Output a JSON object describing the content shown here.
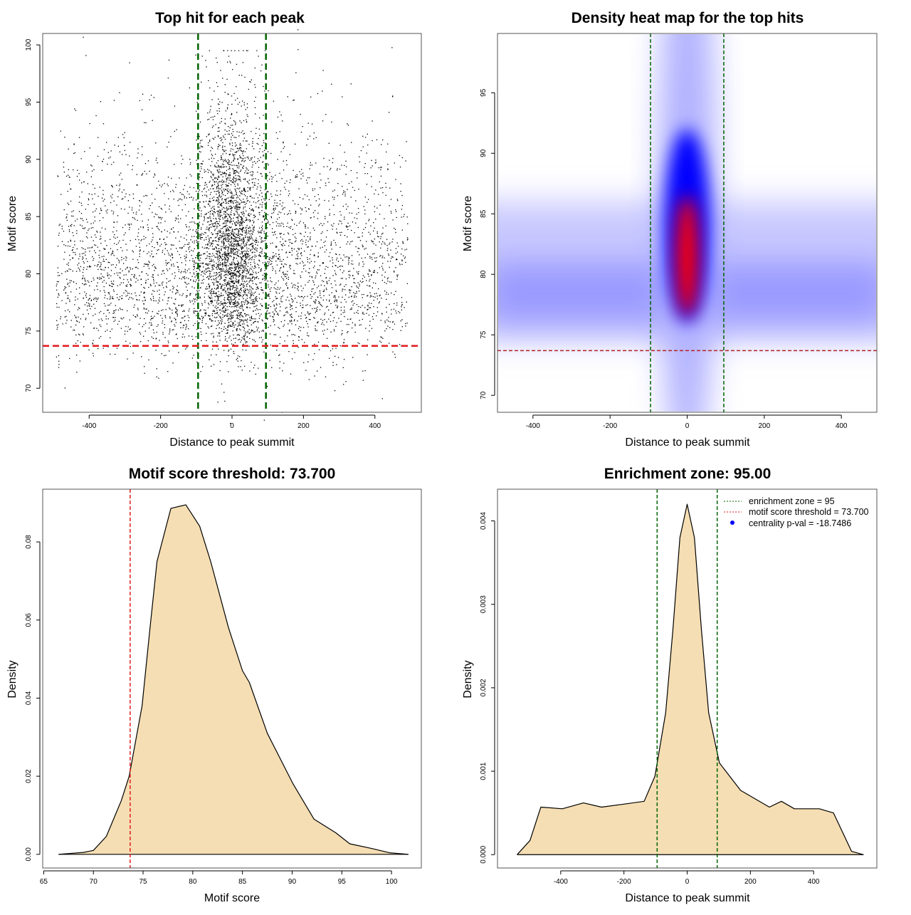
{
  "chart_data": [
    {
      "type": "scatter",
      "title": "Top hit for each peak",
      "xlabel": "Distance to peak summit",
      "ylabel": "Motif score",
      "xlim": [
        -530,
        530
      ],
      "ylim": [
        67.9,
        101
      ],
      "xticks": [
        -400,
        -200,
        0,
        200,
        400
      ],
      "xtick_labels": [
        "-400",
        "-200",
        "0",
        "200",
        "400"
      ],
      "yticks": [
        70,
        75,
        80,
        85,
        90,
        95,
        100
      ],
      "ytick_labels": [
        "70",
        "75",
        "80",
        "85",
        "90",
        "95",
        "100"
      ],
      "vlines": [
        {
          "value": -95,
          "color": "#006400",
          "style": "dashed"
        },
        {
          "value": 95,
          "color": "#006400",
          "style": "dashed"
        }
      ],
      "hlines": [
        {
          "value": 73.7,
          "color": "#e31a1c",
          "style": "dashed"
        }
      ],
      "point_color": "#000000",
      "grid": false
    },
    {
      "type": "heatmap",
      "title": "Density heat map for the top hits",
      "xlabel": "Distance to peak summit",
      "ylabel": "Motif score",
      "xlim": [
        -492,
        492
      ],
      "ylim": [
        68.6,
        99.9
      ],
      "xticks": [
        -400,
        -200,
        0,
        200,
        400
      ],
      "xtick_labels": [
        "-400",
        "-200",
        "0",
        "200",
        "400"
      ],
      "yticks": [
        70,
        75,
        80,
        85,
        90,
        95
      ],
      "ytick_labels": [
        "70",
        "75",
        "80",
        "85",
        "90",
        "95"
      ],
      "vlines": [
        {
          "value": -95,
          "color": "#006400",
          "style": "dashed"
        },
        {
          "value": 95,
          "color": "#006400",
          "style": "dashed"
        }
      ],
      "hlines": [
        {
          "value": 73.7,
          "color": "#b22222",
          "style": "dashed"
        }
      ],
      "colormap": [
        "#ffffff",
        "#0000ff",
        "#ff0000"
      ],
      "density_peak": {
        "x": 0,
        "y": 81.5
      },
      "grid": false
    },
    {
      "type": "area",
      "title": "Motif score threshold: 73.700",
      "xlabel": "Motif score",
      "ylabel": "Density",
      "xlim": [
        64.9,
        103
      ],
      "ylim": [
        -0.0035,
        0.0935
      ],
      "xticks": [
        65,
        70,
        75,
        80,
        85,
        90,
        95,
        100
      ],
      "xtick_labels": [
        "65",
        "70",
        "75",
        "80",
        "85",
        "90",
        "95",
        "100"
      ],
      "yticks": [
        0,
        0.02,
        0.04,
        0.06,
        0.08
      ],
      "ytick_labels": [
        "0.00",
        "0.02",
        "0.04",
        "0.06",
        "0.08"
      ],
      "vlines": [
        {
          "value": 73.7,
          "color": "#e31a1c",
          "style": "dashed"
        }
      ],
      "fill": "#f5deb3",
      "x": [
        66.5,
        69,
        70,
        71.3,
        72.8,
        73.6,
        74.9,
        75.7,
        76.4,
        77.8,
        79.3,
        80.7,
        81.8,
        83.6,
        85,
        85.7,
        87.5,
        90.1,
        92.2,
        94.4,
        95.8,
        98,
        99.8,
        101.7
      ],
      "y": [
        0,
        0.0005,
        0.001,
        0.0046,
        0.0137,
        0.02,
        0.038,
        0.058,
        0.075,
        0.0886,
        0.0895,
        0.084,
        0.075,
        0.058,
        0.047,
        0.044,
        0.031,
        0.018,
        0.009,
        0.0055,
        0.0027,
        0.0015,
        0.0004,
        0
      ],
      "grid": false
    },
    {
      "type": "area",
      "title": "Enrichment zone: 95.00",
      "xlabel": "Distance to peak summit",
      "ylabel": "Density",
      "xlim": [
        -600,
        600
      ],
      "ylim": [
        -0.00016,
        0.00438
      ],
      "xticks": [
        -400,
        -200,
        0,
        200,
        400
      ],
      "xtick_labels": [
        "-400",
        "-200",
        "0",
        "200",
        "400"
      ],
      "yticks": [
        0,
        0.001,
        0.002,
        0.003,
        0.004
      ],
      "ytick_labels": [
        "0.000",
        "0.001",
        "0.002",
        "0.003",
        "0.004"
      ],
      "vlines": [
        {
          "value": -95,
          "color": "#006400",
          "style": "dashed"
        },
        {
          "value": 95,
          "color": "#006400",
          "style": "dashed"
        }
      ],
      "fill": "#f5deb3",
      "x": [
        -538,
        -497,
        -463,
        -395,
        -328,
        -271,
        -192,
        -136,
        -102,
        -68,
        -45,
        -23,
        0,
        23,
        45,
        68,
        102,
        169,
        260,
        298,
        339,
        418,
        463,
        520,
        558
      ],
      "y": [
        0,
        0.00017,
        0.00057,
        0.00055,
        0.00062,
        0.00057,
        0.00061,
        0.00064,
        0.00094,
        0.0017,
        0.0027,
        0.0038,
        0.0042,
        0.0038,
        0.0027,
        0.0017,
        0.0011,
        0.00077,
        0.00057,
        0.00064,
        0.00055,
        0.00055,
        0.0005,
        4e-05,
        0
      ],
      "legend": {
        "position": "top-right",
        "entries": [
          {
            "label": "enrichment zone = 95",
            "color": "#006400",
            "style": "dotted-line"
          },
          {
            "label": "motif score threshold = 73.700",
            "color": "#e31a1c",
            "style": "dotted-line"
          },
          {
            "label": "centrality p-val = -18.7486",
            "color": "#0000ff",
            "style": "point"
          }
        ]
      },
      "grid": false
    }
  ]
}
